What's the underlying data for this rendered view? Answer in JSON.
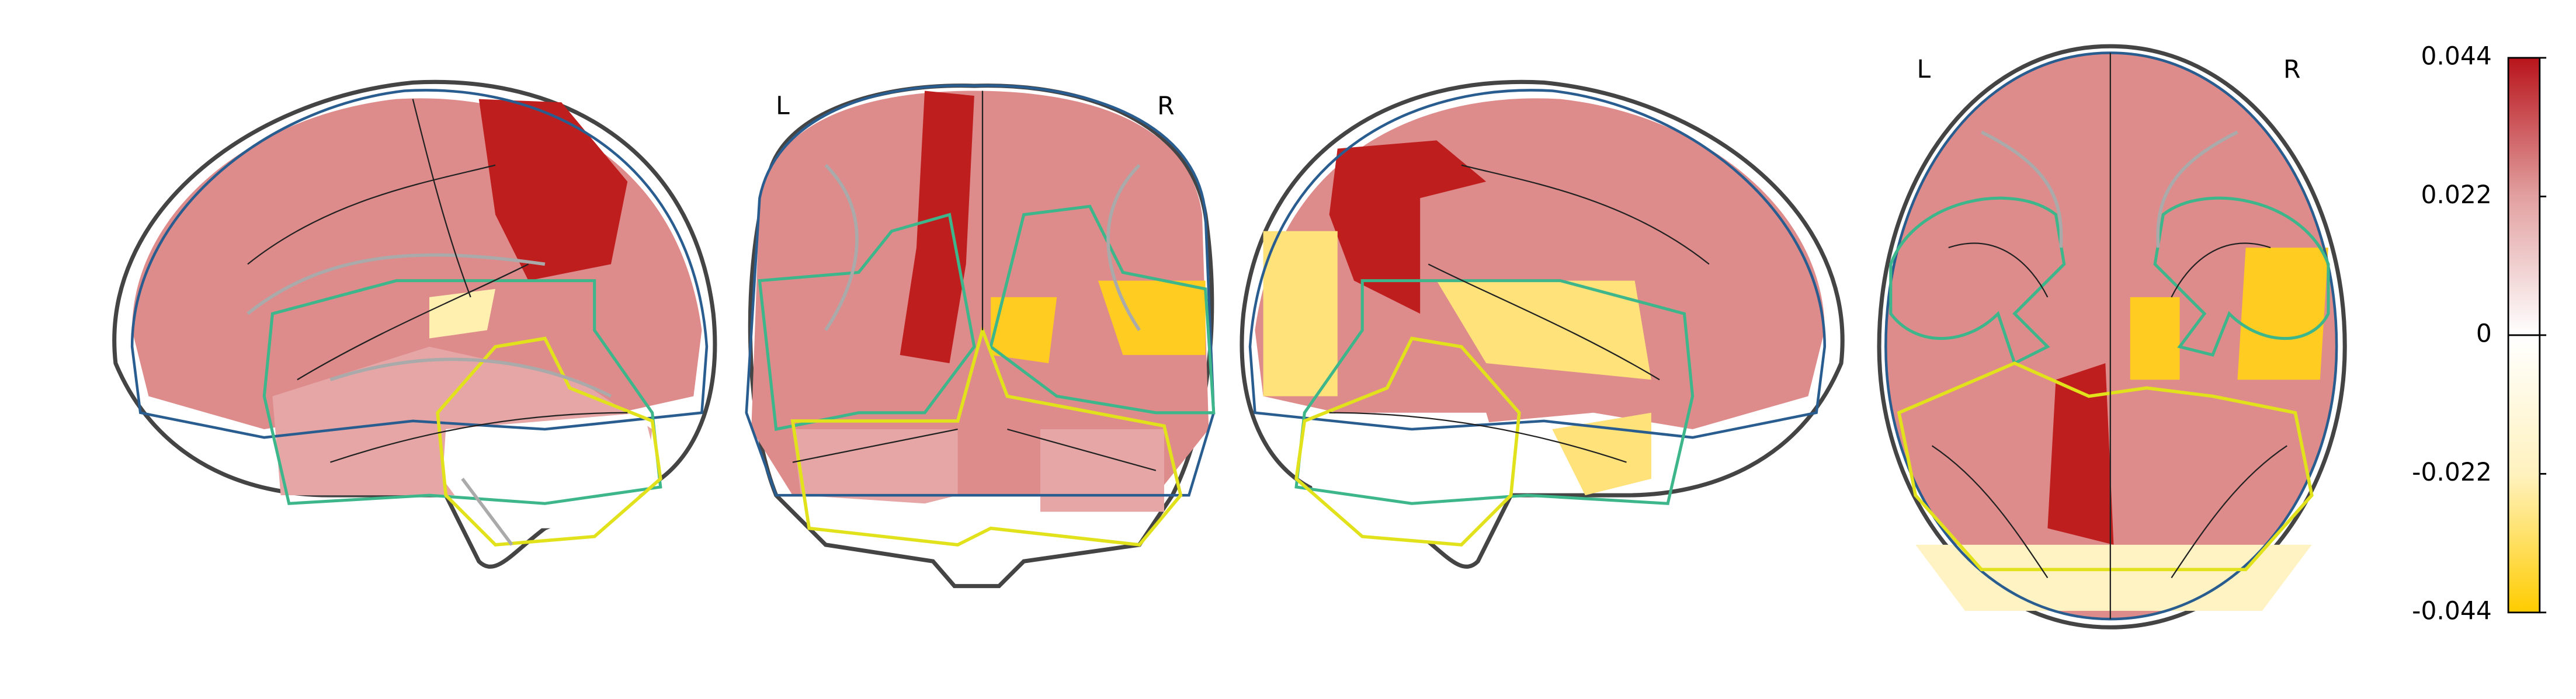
{
  "views": {
    "coronal": {
      "left_label": "L",
      "right_label": "R"
    },
    "axial": {
      "left_label": "L",
      "right_label": "R"
    }
  },
  "colorbar": {
    "ylim": [
      -0.044,
      0.044
    ],
    "yticks": [
      -0.044,
      -0.022,
      0,
      0.022,
      0.044
    ],
    "colors": [
      "#ffcc00",
      "#fff2bf",
      "#ffffff",
      "#e2a0a0",
      "#b8141b"
    ]
  }
}
